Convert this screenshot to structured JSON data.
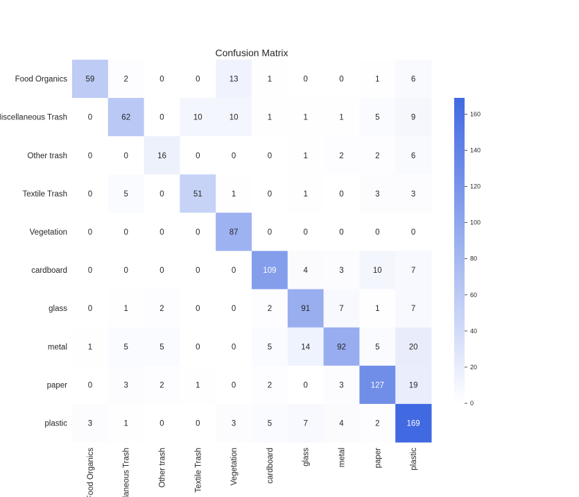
{
  "chart_data": {
    "type": "heatmap",
    "title": "Confusion Matrix",
    "row_labels": [
      "Food Organics",
      "Miscellaneous Trash",
      "Other trash",
      "Textile Trash",
      "Vegetation",
      "cardboard",
      "glass",
      "metal",
      "paper",
      "plastic"
    ],
    "col_labels": [
      "Food Organics",
      "Miscellaneous Trash",
      "Other trash",
      "Textile Trash",
      "Vegetation",
      "cardboard",
      "glass",
      "metal",
      "paper",
      "plastic"
    ],
    "values": [
      [
        59,
        2,
        0,
        0,
        13,
        1,
        0,
        0,
        1,
        6
      ],
      [
        0,
        62,
        0,
        10,
        10,
        1,
        1,
        1,
        5,
        9
      ],
      [
        0,
        0,
        16,
        0,
        0,
        0,
        1,
        2,
        2,
        6
      ],
      [
        0,
        5,
        0,
        51,
        1,
        0,
        1,
        0,
        3,
        3
      ],
      [
        0,
        0,
        0,
        0,
        87,
        0,
        0,
        0,
        0,
        0
      ],
      [
        0,
        0,
        0,
        0,
        0,
        109,
        4,
        3,
        10,
        7
      ],
      [
        0,
        1,
        2,
        0,
        0,
        2,
        91,
        7,
        1,
        7
      ],
      [
        1,
        5,
        5,
        0,
        0,
        5,
        14,
        92,
        5,
        20
      ],
      [
        0,
        3,
        2,
        1,
        0,
        2,
        0,
        3,
        127,
        19
      ],
      [
        3,
        1,
        0,
        0,
        3,
        5,
        7,
        4,
        2,
        169
      ]
    ],
    "colorbar": {
      "min": 0,
      "max": 169,
      "ticks": [
        0,
        20,
        40,
        60,
        80,
        100,
        120,
        140,
        160
      ]
    },
    "colors": {
      "low": "#ffffff",
      "high": "#4169e1",
      "text_dark": "#262626",
      "text_light": "#ffffff"
    }
  }
}
